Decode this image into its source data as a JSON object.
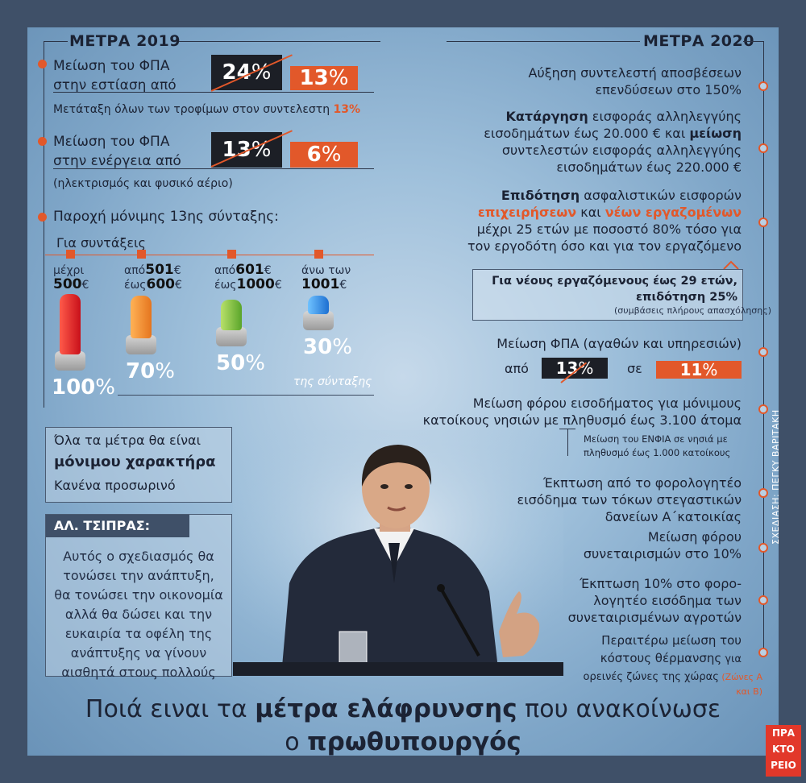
{
  "left": {
    "header": "ΜΕΤΡΑ 2019",
    "vat_dining": {
      "text_l1": "Μείωση του ΦΠΑ",
      "text_l2": "στην εστίαση από",
      "from": "24",
      "to": "13",
      "pct": "%"
    },
    "foods_note": {
      "text": "Μετάταξη όλων των τροφίμων στον συντελεστη",
      "value": "13%"
    },
    "vat_energy": {
      "text_l1": "Μείωση του ΦΠΑ",
      "text_l2": "στην ενέργεια από",
      "from": "13",
      "to": "6",
      "pct": "%",
      "note": "(ηλεκτρισμός και φυσικό αέριο)"
    },
    "pension": {
      "title": "Παροχή μόνιμης 13ης σύνταξης:",
      "subtitle": "Για συντάξεις",
      "tiers": [
        {
          "l1a": "μέχρι",
          "l1b": "",
          "l1c": "",
          "l2a": "",
          "l2b": "500",
          "l2c": "€",
          "percent": "100",
          "fill_ratio": 1.0
        },
        {
          "l1a": "από",
          "l1b": "501",
          "l1c": "€",
          "l2a": "έως",
          "l2b": "600",
          "l2c": "€",
          "percent": "70",
          "fill_ratio": 0.7
        },
        {
          "l1a": "από",
          "l1b": "601",
          "l1c": "€",
          "l2a": "έως",
          "l2b": "1000",
          "l2c": "€",
          "percent": "50",
          "fill_ratio": 0.5
        },
        {
          "l1a": "άνω των",
          "l1b": "",
          "l1c": "",
          "l2a": "",
          "l2b": "1001",
          "l2c": "€",
          "percent": "30",
          "fill_ratio": 0.3
        }
      ],
      "footnote": "της σύνταξης"
    },
    "permanent_box": {
      "l1": "Όλα τα μέτρα θα είναι",
      "l2": "μόνιμου χαρακτήρα",
      "l3": "Κανένα προσωρινό"
    },
    "quote": {
      "name": "ΑΛ. ΤΣΙΠΡΑΣ:",
      "lines": [
        "Αυτός ο σχεδιασμός θα",
        "τονώσει την ανάπτυξη,",
        "θα τονώσει την οικονομία",
        "αλλά θα δώσει και την",
        "ευκαιρία τα οφέλη της",
        "ανάπτυξης να γίνουν",
        "αισθητά στους πολλούς"
      ]
    }
  },
  "right": {
    "header": "ΜΕΤΡΑ 2020",
    "m1": {
      "l1": "Αύξηση συντελεστή αποσβέσεων",
      "l2": "επενδύσεων στο 150%"
    },
    "m2": {
      "b1": "Κατάργηση",
      "t1": " εισφοράς αλληλεγγύης",
      "t2": "εισοδημάτων έως 20.000 € και ",
      "b2": "μείωση",
      "t3": "συντελεστών εισφοράς αλληλεγγύης",
      "t4": "εισοδημάτων έως 220.000 €"
    },
    "m3": {
      "b1": "Επιδότηση",
      "t1": " ασφαλιστικών εισφορών",
      "o1": "επιχειρήσεων",
      "t2": " και ",
      "o2": "νέων εργαζομένων",
      "t3": "μέχρι 25 ετών με ποσοστό 80% τόσο για",
      "t4": "τον εργοδότη όσο και για τον εργαζόμενο"
    },
    "young": {
      "l1": "Για νέους εργαζόμενους έως 29 ετών,",
      "l2": "επιδότηση 25%",
      "l3": "(συμβάσεις πλήρους απασχόλησης)"
    },
    "vat_goods": {
      "l1": "Μείωση ΦΠΑ (αγαθών και υπηρεσιών)",
      "from_label": "από",
      "from": "13",
      "to_label": "σε",
      "to": "11",
      "pct": "%"
    },
    "islands": {
      "l1": "Μείωση φόρου εισοδήματος για μόνιμους",
      "l2": "κατοίκους νησιών με πληθυσμό έως 3.100 άτομα",
      "n1": "Μείωση του ΕΝΦΙΑ σε νησιά με",
      "n2": "πληθυσμό έως 1.000 κατοίκους"
    },
    "mortgage": {
      "l1": "Έκπτωση από το φορολογητέο",
      "l2": "εισόδημα των τόκων στεγαστικών",
      "l3": "δανείων Α΄κατοικίας"
    },
    "coops": {
      "l1": "Μείωση φόρου",
      "l2": "συνεταιρισμών στο 10%"
    },
    "farmers": {
      "l1": "Έκπτωση 10% στο φορο-",
      "l2": "λογητέο εισόδημα των",
      "l3": "συνεταιρισμένων αγροτών"
    },
    "heating": {
      "l1": "Περαιτέρω μείωση του",
      "l2a": "κόστους θέρμανσης",
      "l2b": " για",
      "l3a": "ορεινές ζώνες της χώρας",
      "l3b": " (Ζώνες Α",
      "l4": "και Β)"
    }
  },
  "title": {
    "t1": "Ποιά ειναι τα ",
    "b1": "μέτρα ελάφρυνσης",
    "t2": " που ανακοίνωσε",
    "t3": "ο ",
    "b2": "πρωθυπουργός"
  },
  "credit": "ΣΧΕΔΙΑΣΗ: ΠΕΓΚΥ ΒΑΡΙΤΑΚΗ",
  "logo": {
    "l1": "ΠΡΑ",
    "l2": "ΚΤΟ",
    "l3": "ΡΕΙΟ"
  },
  "colors": {
    "accent": "#e2582a",
    "dark": "#1c1f26",
    "frame": "#3f5068"
  }
}
